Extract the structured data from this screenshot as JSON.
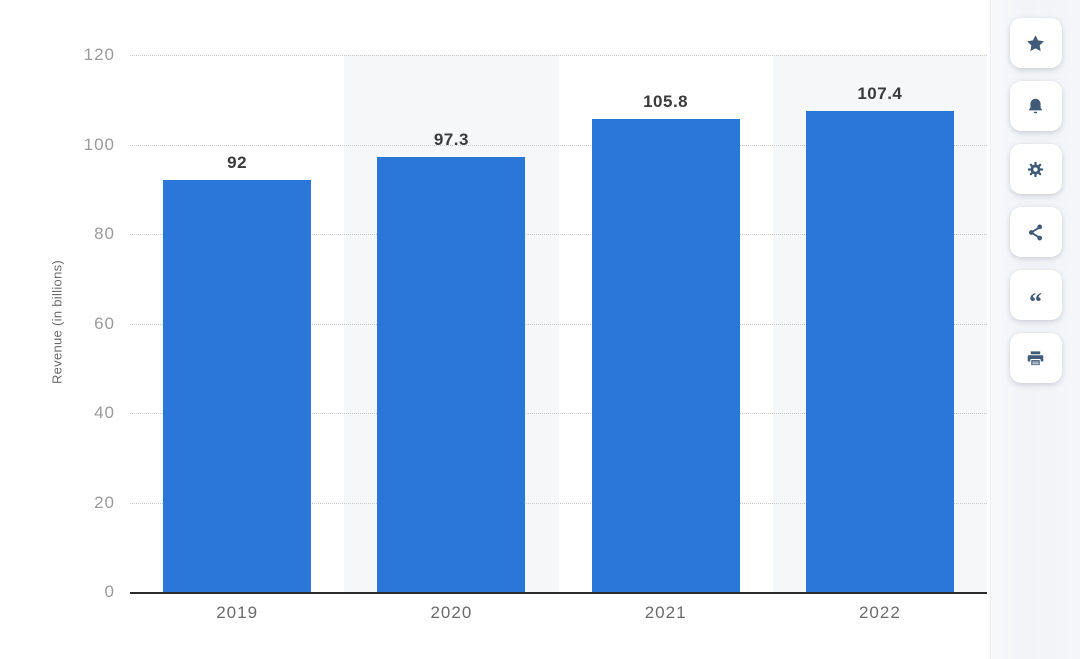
{
  "chart_data": {
    "type": "bar",
    "categories": [
      "2019",
      "2020",
      "2021",
      "2022"
    ],
    "values": [
      92,
      97.3,
      105.8,
      107.4
    ],
    "value_labels": [
      "92",
      "97.3",
      "105.8",
      "107.4"
    ],
    "title": "",
    "xlabel": "",
    "ylabel": "Revenue (in billions)",
    "ylim": [
      0,
      120
    ],
    "yticks": [
      0,
      20,
      40,
      60,
      80,
      100,
      120
    ],
    "grid": "dotted-horizontal",
    "legend": "none",
    "banded_columns": [
      1,
      3
    ]
  },
  "toolbar": {
    "buttons": [
      {
        "name": "favorite",
        "icon": "star-icon"
      },
      {
        "name": "notifications",
        "icon": "bell-icon"
      },
      {
        "name": "settings",
        "icon": "gear-icon"
      },
      {
        "name": "share",
        "icon": "share-icon"
      },
      {
        "name": "cite",
        "icon": "quote-icon"
      },
      {
        "name": "print",
        "icon": "print-icon"
      }
    ]
  },
  "colors": {
    "bar": "#2a76d9",
    "band": "#f6f7f9",
    "grid": "#cbcbcb",
    "axis": "#2b2b2b",
    "tick_text": "#9a9a9a",
    "xlabel_text": "#6b6b6b",
    "value_text": "#3b3b3b",
    "icon": "#415a77",
    "toolbar_bg": "#f1f3f6",
    "button_bg": "#ffffff"
  }
}
